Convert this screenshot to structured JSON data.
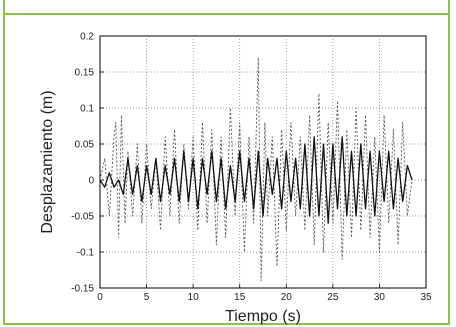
{
  "chart_data": {
    "type": "line",
    "xlabel": "Tiempo (s)",
    "ylabel": "Desplazamiento (m)",
    "xlim": [
      0,
      35
    ],
    "ylim": [
      -0.15,
      0.2
    ],
    "xticks": [
      "0",
      "5",
      "10",
      "15",
      "20",
      "25",
      "30",
      "35"
    ],
    "yticks": [
      "0.2",
      "0.15",
      "0.1",
      "0.05",
      "0",
      "-0.05",
      "-0.1",
      "-0.15"
    ],
    "grid": true,
    "series": [
      {
        "style": "dashed",
        "color": "#555555",
        "x": [
          0,
          0.5,
          1,
          1.5,
          1.7,
          2,
          2.3,
          2.7,
          3,
          3.5,
          4,
          4.5,
          5,
          5.5,
          6,
          6.5,
          7,
          7.5,
          8,
          8.5,
          9,
          9.5,
          10,
          10.5,
          11,
          11.5,
          12,
          12.5,
          13,
          13.5,
          14,
          14.5,
          15,
          15.5,
          16,
          16.5,
          17,
          17.3,
          17.7,
          18,
          18.5,
          19,
          19.5,
          20,
          20.5,
          21,
          21.5,
          22,
          22.5,
          23,
          23.5,
          24,
          24.5,
          25,
          25.5,
          26,
          26.5,
          27,
          27.5,
          28,
          28.5,
          29,
          29.5,
          30,
          30.5,
          31,
          31.5,
          32,
          32.5,
          33,
          33.5
        ],
        "y": [
          0.0,
          0.03,
          -0.05,
          0.06,
          0.08,
          -0.08,
          0.09,
          -0.06,
          0.04,
          -0.05,
          0.05,
          -0.06,
          0.05,
          -0.04,
          0.03,
          -0.07,
          0.06,
          -0.05,
          0.07,
          -0.06,
          0.05,
          -0.04,
          0.06,
          -0.07,
          0.08,
          -0.06,
          0.07,
          -0.09,
          0.06,
          -0.08,
          0.1,
          -0.05,
          0.08,
          -0.1,
          0.06,
          -0.06,
          0.17,
          -0.14,
          0.08,
          -0.05,
          0.06,
          -0.12,
          0.07,
          -0.07,
          0.08,
          -0.05,
          0.06,
          -0.07,
          0.09,
          -0.09,
          0.12,
          -0.1,
          0.08,
          -0.06,
          0.11,
          -0.11,
          0.07,
          -0.08,
          0.1,
          -0.07,
          0.09,
          -0.08,
          0.06,
          -0.1,
          0.09,
          -0.06,
          0.07,
          -0.09,
          0.08,
          -0.05,
          0.0
        ]
      },
      {
        "style": "solid",
        "color": "#111111",
        "x": [
          0,
          0.5,
          1,
          1.5,
          2,
          2.5,
          3,
          3.5,
          4,
          4.5,
          5,
          5.5,
          6,
          6.5,
          7,
          7.5,
          8,
          8.5,
          9,
          9.5,
          10,
          10.5,
          11,
          11.5,
          12,
          12.5,
          13,
          13.5,
          14,
          14.5,
          15,
          15.5,
          16,
          16.5,
          17,
          17.5,
          18,
          18.5,
          19,
          19.5,
          20,
          20.5,
          21,
          21.5,
          22,
          22.5,
          23,
          23.5,
          24,
          24.5,
          25,
          25.5,
          26,
          26.5,
          27,
          27.5,
          28,
          28.5,
          29,
          29.5,
          30,
          30.5,
          31,
          31.5,
          32,
          32.5,
          33,
          33.5
        ],
        "y": [
          0.0,
          -0.01,
          0.01,
          -0.01,
          0.0,
          -0.02,
          0.03,
          -0.02,
          0.02,
          -0.03,
          0.02,
          -0.02,
          0.03,
          -0.03,
          0.02,
          -0.02,
          0.03,
          -0.03,
          0.04,
          -0.03,
          0.03,
          -0.04,
          0.03,
          -0.02,
          0.04,
          -0.03,
          0.03,
          -0.04,
          0.02,
          -0.03,
          0.04,
          -0.03,
          0.03,
          -0.04,
          0.04,
          -0.05,
          0.03,
          -0.02,
          0.03,
          -0.04,
          0.04,
          -0.03,
          0.03,
          -0.04,
          0.05,
          -0.05,
          0.06,
          -0.05,
          0.05,
          -0.06,
          0.05,
          -0.04,
          0.06,
          -0.05,
          0.04,
          -0.05,
          0.05,
          -0.04,
          0.04,
          -0.05,
          0.04,
          -0.03,
          0.04,
          -0.04,
          0.03,
          -0.03,
          0.02,
          0.0
        ]
      }
    ]
  }
}
